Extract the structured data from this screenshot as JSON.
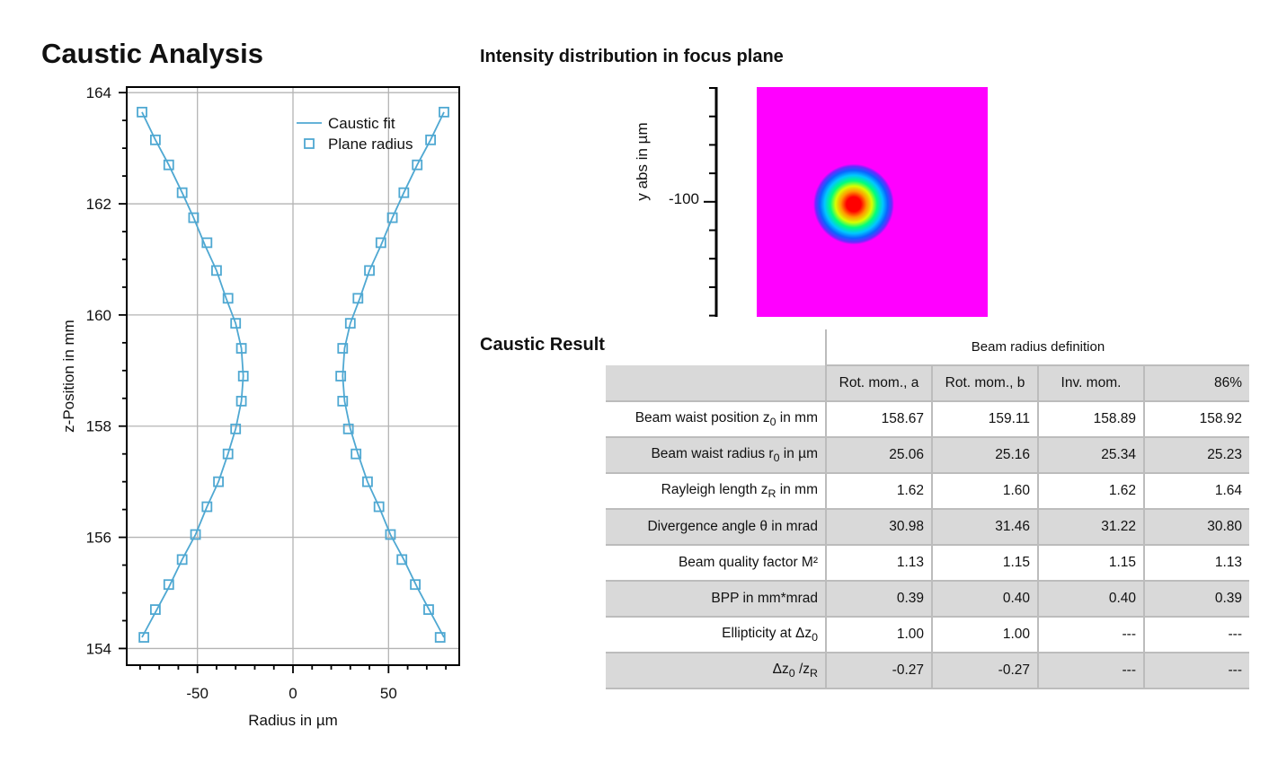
{
  "page": {
    "title": "Caustic Analysis",
    "intensity_title": "Intensity distribution in focus plane",
    "results_title": "Caustic Results"
  },
  "chart_data": [
    {
      "type": "scatter",
      "xlabel": "Radius in µm",
      "ylabel": "z-Position in mm",
      "xlim": [
        -87,
        87
      ],
      "ylim": [
        153.7,
        164.1
      ],
      "x_ticks": [
        -50,
        0,
        50
      ],
      "y_ticks": [
        154,
        156,
        158,
        160,
        162,
        164
      ],
      "grid": true,
      "legend_position": "top-right",
      "series": [
        {
          "name": "Caustic fit",
          "style": "line",
          "color": "#4fa8d2",
          "points": [
            [
              -79,
              163.65
            ],
            [
              -72,
              163.15
            ],
            [
              -65,
              162.7
            ],
            [
              -58,
              162.2
            ],
            [
              -52,
              161.75
            ],
            [
              -46,
              161.25
            ],
            [
              -40,
              160.8
            ],
            [
              -35,
              160.3
            ],
            [
              -30,
              159.85
            ],
            [
              -27,
              159.4
            ],
            [
              -26,
              158.9
            ],
            [
              -27,
              158.45
            ],
            [
              -30,
              157.95
            ],
            [
              -34,
              157.5
            ],
            [
              -39,
              157.0
            ],
            [
              -45,
              156.55
            ],
            [
              -51,
              156.05
            ],
            [
              -58,
              155.6
            ],
            [
              -65,
              155.1
            ],
            [
              -72,
              154.65
            ],
            [
              -79,
              154.2
            ],
            [
              null,
              null
            ],
            [
              79,
              163.65
            ],
            [
              72,
              163.15
            ],
            [
              65,
              162.7
            ],
            [
              58,
              162.2
            ],
            [
              52,
              161.75
            ],
            [
              46,
              161.25
            ],
            [
              40,
              160.8
            ],
            [
              35,
              160.3
            ],
            [
              30,
              159.85
            ],
            [
              27,
              159.4
            ],
            [
              26,
              158.9
            ],
            [
              27,
              158.45
            ],
            [
              30,
              157.95
            ],
            [
              34,
              157.5
            ],
            [
              39,
              157.0
            ],
            [
              45,
              156.55
            ],
            [
              51,
              156.05
            ],
            [
              58,
              155.6
            ],
            [
              65,
              155.1
            ],
            [
              72,
              154.65
            ],
            [
              79,
              154.2
            ]
          ]
        },
        {
          "name": "Plane radius",
          "style": "marker",
          "color": "#4fa8d2",
          "points": [
            [
              -79,
              163.65
            ],
            [
              -72,
              163.15
            ],
            [
              -65,
              162.7
            ],
            [
              -58,
              162.2
            ],
            [
              -52,
              161.75
            ],
            [
              -45,
              161.3
            ],
            [
              -40,
              160.8
            ],
            [
              -34,
              160.3
            ],
            [
              -30,
              159.85
            ],
            [
              -27,
              159.4
            ],
            [
              -26,
              158.9
            ],
            [
              -27,
              158.45
            ],
            [
              -30,
              157.95
            ],
            [
              -34,
              157.5
            ],
            [
              -39,
              157.0
            ],
            [
              -45,
              156.55
            ],
            [
              -51,
              156.05
            ],
            [
              -58,
              155.6
            ],
            [
              -65,
              155.15
            ],
            [
              -72,
              154.7
            ],
            [
              -78,
              154.2
            ],
            [
              79,
              163.65
            ],
            [
              72,
              163.15
            ],
            [
              65,
              162.7
            ],
            [
              58,
              162.2
            ],
            [
              52,
              161.75
            ],
            [
              46,
              161.3
            ],
            [
              40,
              160.8
            ],
            [
              34,
              160.3
            ],
            [
              30,
              159.85
            ],
            [
              26,
              159.4
            ],
            [
              25,
              158.9
            ],
            [
              26,
              158.45
            ],
            [
              29,
              157.95
            ],
            [
              33,
              157.5
            ],
            [
              39,
              157.0
            ],
            [
              45,
              156.55
            ],
            [
              51,
              156.05
            ],
            [
              57,
              155.6
            ],
            [
              64,
              155.15
            ],
            [
              71,
              154.7
            ],
            [
              77,
              154.2
            ]
          ]
        }
      ]
    },
    {
      "type": "heatmap",
      "ylabel": "y abs in µm",
      "y_tick_label": "-100",
      "background_color": "#ff00ff",
      "colormap": [
        "#ff00ff",
        "#6a2bff",
        "#0a64ff",
        "#00c8ff",
        "#00ff7a",
        "#d8ff00",
        "#ff9a00",
        "#ff0000"
      ],
      "peak_offset_fraction": [
        0.42,
        0.51
      ]
    }
  ],
  "results": {
    "beam_radius_definition": "Beam radius definition",
    "columns": [
      "Rot. mom., a",
      "Rot. mom., b",
      "Inv. mom.",
      "86%"
    ],
    "rows": [
      {
        "label": "Beam waist position z",
        "sub": "0",
        "unit": " in mm",
        "values": [
          "158.67",
          "159.11",
          "158.89",
          "158.92"
        ]
      },
      {
        "label": "Beam waist radius r",
        "sub": "0",
        "unit": " in µm",
        "values": [
          "25.06",
          "25.16",
          "25.34",
          "25.23"
        ]
      },
      {
        "label": "Rayleigh length z",
        "sub": "R",
        "unit": " in mm",
        "values": [
          "1.62",
          "1.60",
          "1.62",
          "1.64"
        ]
      },
      {
        "label": "Divergence angle θ in mrad",
        "sub": "",
        "unit": "",
        "values": [
          "30.98",
          "31.46",
          "31.22",
          "30.80"
        ]
      },
      {
        "label": "Beam quality factor M²",
        "sub": "",
        "unit": "",
        "values": [
          "1.13",
          "1.15",
          "1.15",
          "1.13"
        ]
      },
      {
        "label": "BPP in mm*mrad",
        "sub": "",
        "unit": "",
        "values": [
          "0.39",
          "0.40",
          "0.40",
          "0.39"
        ]
      },
      {
        "label": "Ellipticity at Δz",
        "sub": "0",
        "unit": "",
        "values": [
          "1.00",
          "1.00",
          "---",
          "---"
        ]
      },
      {
        "label": "Δz",
        "sub": "0",
        "unit": " /z",
        "sub2": "R",
        "values": [
          "-0.27",
          "-0.27",
          "---",
          "---"
        ]
      }
    ]
  }
}
